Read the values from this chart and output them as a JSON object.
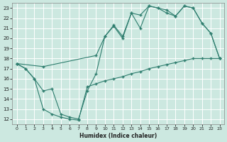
{
  "xlabel": "Humidex (Indice chaleur)",
  "bg_color": "#cce8e0",
  "line_color": "#2e7d6e",
  "grid_color": "#ffffff",
  "xlim": [
    -0.5,
    23.5
  ],
  "ylim": [
    11.5,
    23.5
  ],
  "xticks": [
    0,
    1,
    2,
    3,
    4,
    5,
    6,
    7,
    8,
    9,
    10,
    11,
    12,
    13,
    14,
    15,
    16,
    17,
    18,
    19,
    20,
    21,
    22,
    23
  ],
  "yticks": [
    12,
    13,
    14,
    15,
    16,
    17,
    18,
    19,
    20,
    21,
    22,
    23
  ],
  "line1_x": [
    0,
    1,
    2,
    3,
    4,
    5,
    6,
    7,
    8,
    9,
    10,
    11,
    12,
    13,
    14,
    15,
    16,
    17,
    18,
    19,
    20,
    21,
    22,
    23
  ],
  "line1_y": [
    17.5,
    17.0,
    16.0,
    14.8,
    15.0,
    12.5,
    12.2,
    12.0,
    14.8,
    16.5,
    20.2,
    21.2,
    20.0,
    22.5,
    21.0,
    23.2,
    23.0,
    22.8,
    22.2,
    23.2,
    23.0,
    21.5,
    20.5,
    18.0
  ],
  "line1_marker_x": [
    0,
    1,
    2,
    3,
    4,
    5,
    6,
    7,
    8,
    9,
    10,
    11,
    13,
    14,
    15,
    16,
    17,
    18,
    19,
    20,
    21,
    22,
    23
  ],
  "line2_x": [
    0,
    3,
    9,
    10,
    11,
    12,
    13,
    14,
    15,
    16,
    17,
    18,
    19,
    20,
    21,
    22,
    23
  ],
  "line2_y": [
    17.5,
    17.2,
    18.3,
    20.2,
    21.3,
    20.2,
    22.5,
    22.3,
    23.2,
    23.0,
    22.5,
    22.2,
    23.2,
    23.0,
    21.5,
    20.5,
    18.0
  ],
  "line3_x": [
    0,
    1,
    2,
    3,
    4,
    5,
    6,
    7,
    8,
    9,
    10,
    11,
    12,
    13,
    14,
    15,
    16,
    17,
    18,
    19,
    20,
    21,
    22,
    23
  ],
  "line3_y": [
    17.5,
    17.0,
    16.0,
    13.0,
    12.5,
    12.2,
    12.0,
    11.9,
    15.2,
    15.5,
    15.8,
    16.0,
    16.2,
    16.5,
    16.7,
    17.0,
    17.2,
    17.4,
    17.6,
    17.8,
    18.0,
    18.0,
    18.0,
    18.0
  ]
}
